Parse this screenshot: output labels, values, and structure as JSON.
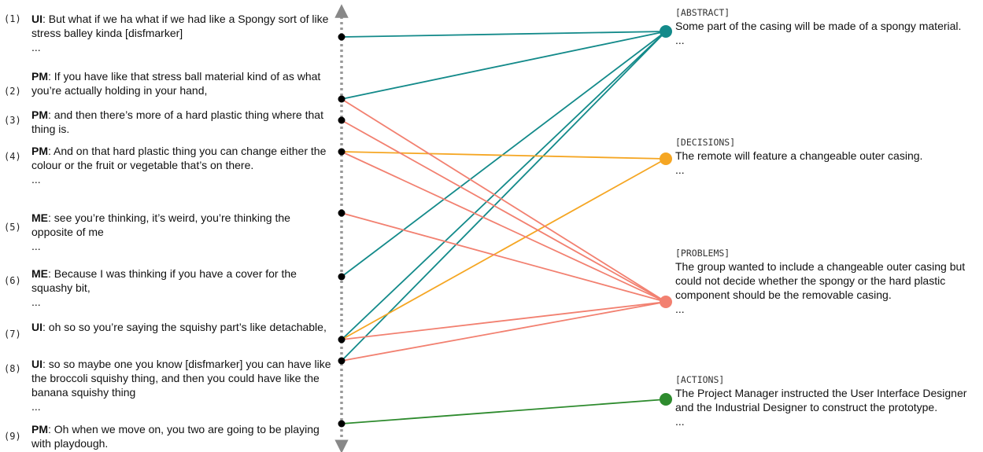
{
  "utterances": [
    {
      "num": "(1)",
      "speaker": "UI",
      "text": ": But what if we ha what if we had like a Spongy sort of like stress balley kinda [disfmarker]",
      "after": "..."
    },
    {
      "num": "(2)",
      "speaker": "PM",
      "text": ": If you have like that stress ball material kind of as what you’re actually holding in your hand,",
      "after": ""
    },
    {
      "num": "(3)",
      "speaker": "PM",
      "text": ": and then there’s more of a hard plastic thing where that thing is.",
      "after": ""
    },
    {
      "num": "(4)",
      "speaker": "PM",
      "text": ": And on that hard plastic thing you can change either the colour or the fruit or vegetable that’s on there.",
      "after": "..."
    },
    {
      "num": "(5)",
      "speaker": "ME",
      "text": ": see you’re thinking, it’s weird, you’re thinking the opposite of me",
      "after": "..."
    },
    {
      "num": "(6)",
      "speaker": "ME",
      "text": ": Because I was thinking if you have a cover for the squashy bit,",
      "after": "..."
    },
    {
      "num": "(7)",
      "speaker": "UI",
      "text": ": oh so so you’re saying the squishy part’s like detachable,",
      "after": ""
    },
    {
      "num": "(8)",
      "speaker": "UI",
      "text": ": so so maybe one you know [disfmarker] you can have like the broccoli squishy thing, and then you could have like the banana squishy thing",
      "after": "..."
    },
    {
      "num": "(9)",
      "speaker": "PM",
      "text": ": Oh when we move on, you two are going to be playing with playdough.",
      "after": ""
    }
  ],
  "summaries": [
    {
      "tag": "[ABSTRACT]",
      "text": "Some part of the casing will be made of a spongy material.",
      "after": "...",
      "color": "#138a8a"
    },
    {
      "tag": "[DECISIONS]",
      "text": "The remote will feature a changeable outer casing.",
      "after": "...",
      "color": "#f5a623"
    },
    {
      "tag": "[PROBLEMS]",
      "text": "The group wanted to include a changeable outer casing but could not decide whether the spongy or the hard plastic component should be the removable casing.",
      "after": "...",
      "color": "#f28070"
    },
    {
      "tag": "[ACTIONS]",
      "text": "The Project Manager instructed the User Interface Designer and the Industrial Designer to construct the prototype.",
      "after": "...",
      "color": "#2e8b2e"
    }
  ],
  "links": [
    {
      "from": 1,
      "to": 0
    },
    {
      "from": 2,
      "to": 0
    },
    {
      "from": 6,
      "to": 0
    },
    {
      "from": 7,
      "to": 0
    },
    {
      "from": 8,
      "to": 0
    },
    {
      "from": 4,
      "to": 1
    },
    {
      "from": 7,
      "to": 1
    },
    {
      "from": 2,
      "to": 2
    },
    {
      "from": 3,
      "to": 2
    },
    {
      "from": 4,
      "to": 2
    },
    {
      "from": 5,
      "to": 2
    },
    {
      "from": 7,
      "to": 2
    },
    {
      "from": 8,
      "to": 2
    },
    {
      "from": 9,
      "to": 3
    }
  ]
}
